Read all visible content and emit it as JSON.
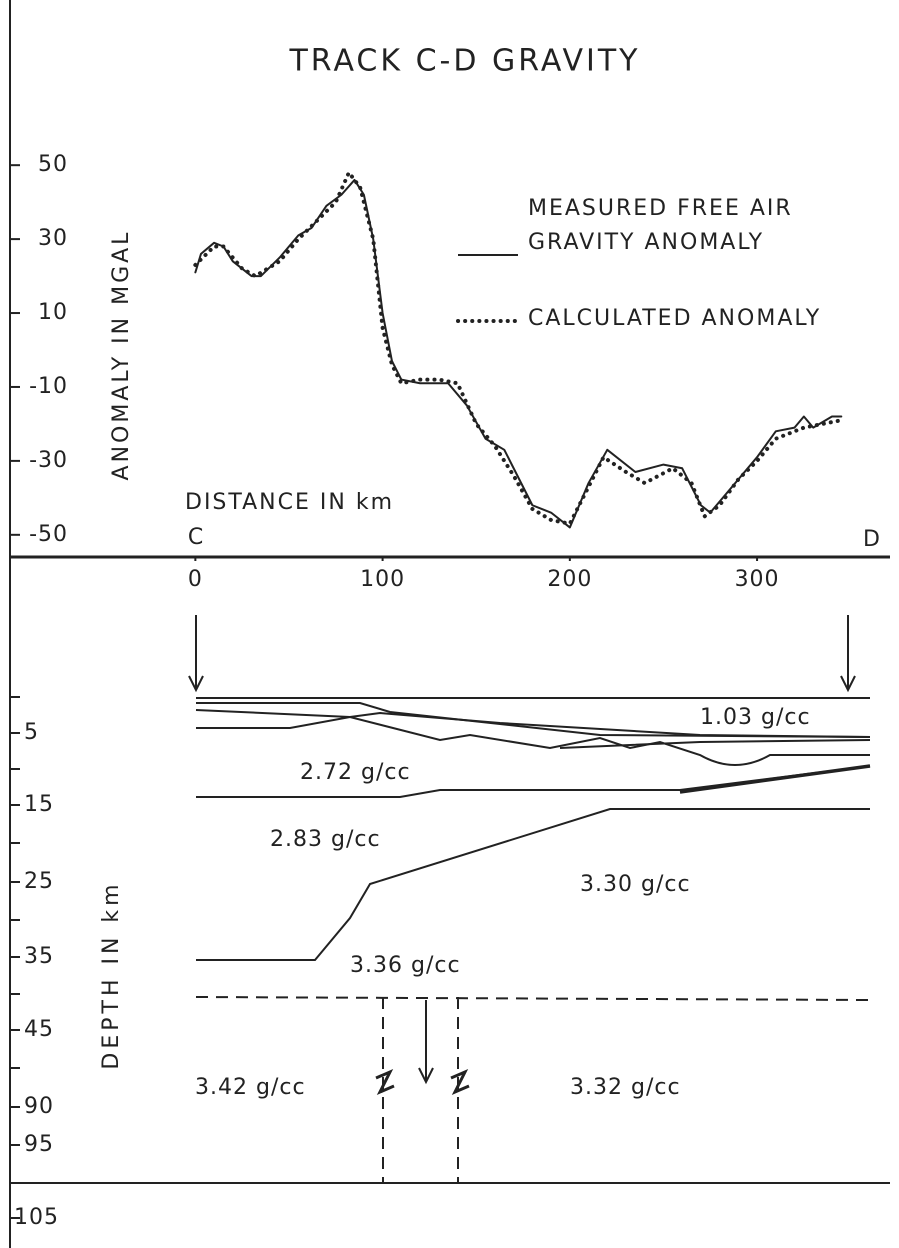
{
  "chart_data": {
    "type": "line",
    "title": "TRACK C-D GRAVITY",
    "y_label": "ANOMALY IN MGAL",
    "x_label": "DISTANCE IN km",
    "annotations": [
      "C",
      "D"
    ],
    "xlim": [
      -99,
      371
    ],
    "xticks": [
      0,
      100,
      200,
      300
    ],
    "ylim": [
      -56,
      56
    ],
    "yticks": [
      50,
      30,
      10,
      -10,
      -30,
      -50
    ],
    "series": [
      {
        "name": "MEASURED FREE AIR GRAVITY ANOMALY",
        "color": "#222",
        "style": "solid",
        "x": [
          0,
          3,
          10,
          15,
          20,
          30,
          35,
          45,
          55,
          62,
          70,
          78,
          85,
          90,
          95,
          100,
          105,
          110,
          120,
          135,
          145,
          155,
          165,
          180,
          190,
          200,
          210,
          220,
          235,
          250,
          260,
          270,
          275,
          285,
          300,
          310,
          320,
          325,
          330,
          340,
          345
        ],
        "values": [
          21,
          26,
          29,
          28,
          24,
          20,
          20,
          25,
          31,
          33,
          39,
          42,
          46,
          42,
          30,
          10,
          -3,
          -8,
          -9,
          -9,
          -15,
          -24,
          -27,
          -42,
          -44,
          -48,
          -36,
          -27,
          -33,
          -31,
          -32,
          -42,
          -44,
          -38,
          -29,
          -22,
          -21,
          -18,
          -21,
          -18,
          -18
        ]
      },
      {
        "name": "CALCULATED ANOMALY",
        "color": "#222",
        "style": "dotted",
        "x": [
          0,
          10,
          15,
          25,
          32,
          45,
          55,
          65,
          75,
          82,
          88,
          95,
          100,
          105,
          110,
          120,
          130,
          140,
          150,
          160,
          170,
          180,
          190,
          200,
          210,
          218,
          230,
          240,
          255,
          265,
          272,
          280,
          290,
          300,
          310,
          325,
          335,
          345
        ],
        "values": [
          23,
          28,
          28,
          22,
          20,
          24,
          30,
          35,
          40,
          48,
          44,
          30,
          6,
          -4,
          -9,
          -8,
          -8,
          -9,
          -20,
          -26,
          -34,
          -43,
          -46,
          -47,
          -37,
          -29,
          -33,
          -36,
          -32,
          -36,
          -45,
          -42,
          -35,
          -30,
          -24,
          -21,
          -20,
          -19
        ]
      }
    ]
  },
  "section": {
    "axis_label": "DEPTH IN km",
    "depth_ticks": [
      "5",
      "15",
      "25",
      "35",
      "45",
      "90",
      "95",
      "105"
    ],
    "layers": [
      "1.03 g/cc",
      "2.72 g/cc",
      "2.83 g/cc",
      "3.30 g/cc",
      "3.36 g/cc",
      "3.42 g/cc",
      "3.32 g/cc"
    ]
  }
}
